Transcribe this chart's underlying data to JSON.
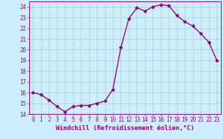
{
  "hours": [
    0,
    1,
    2,
    3,
    4,
    5,
    6,
    7,
    8,
    9,
    10,
    11,
    12,
    13,
    14,
    15,
    16,
    17,
    18,
    19,
    20,
    21,
    22,
    23
  ],
  "values": [
    16.0,
    15.8,
    15.3,
    14.7,
    14.2,
    14.7,
    14.8,
    14.8,
    15.0,
    15.2,
    16.3,
    20.2,
    22.9,
    23.9,
    23.6,
    24.0,
    24.2,
    24.1,
    23.2,
    22.6,
    22.2,
    21.5,
    20.7,
    19.0
  ],
  "xlim": [
    -0.5,
    23.5
  ],
  "ylim": [
    14,
    24.5
  ],
  "yticks": [
    14,
    15,
    16,
    17,
    18,
    19,
    20,
    21,
    22,
    23,
    24
  ],
  "xticks": [
    0,
    1,
    2,
    3,
    4,
    5,
    6,
    7,
    8,
    9,
    10,
    11,
    12,
    13,
    14,
    15,
    16,
    17,
    18,
    19,
    20,
    21,
    22,
    23
  ],
  "line_color": "#880088",
  "marker": "D",
  "marker_size": 2.0,
  "bg_color": "#cceeff",
  "grid_color": "#aaccbb",
  "xlabel": "Windchill (Refroidissement éolien,°C)",
  "xlabel_fontsize": 6.5,
  "tick_fontsize": 5.5,
  "line_width": 1.0
}
